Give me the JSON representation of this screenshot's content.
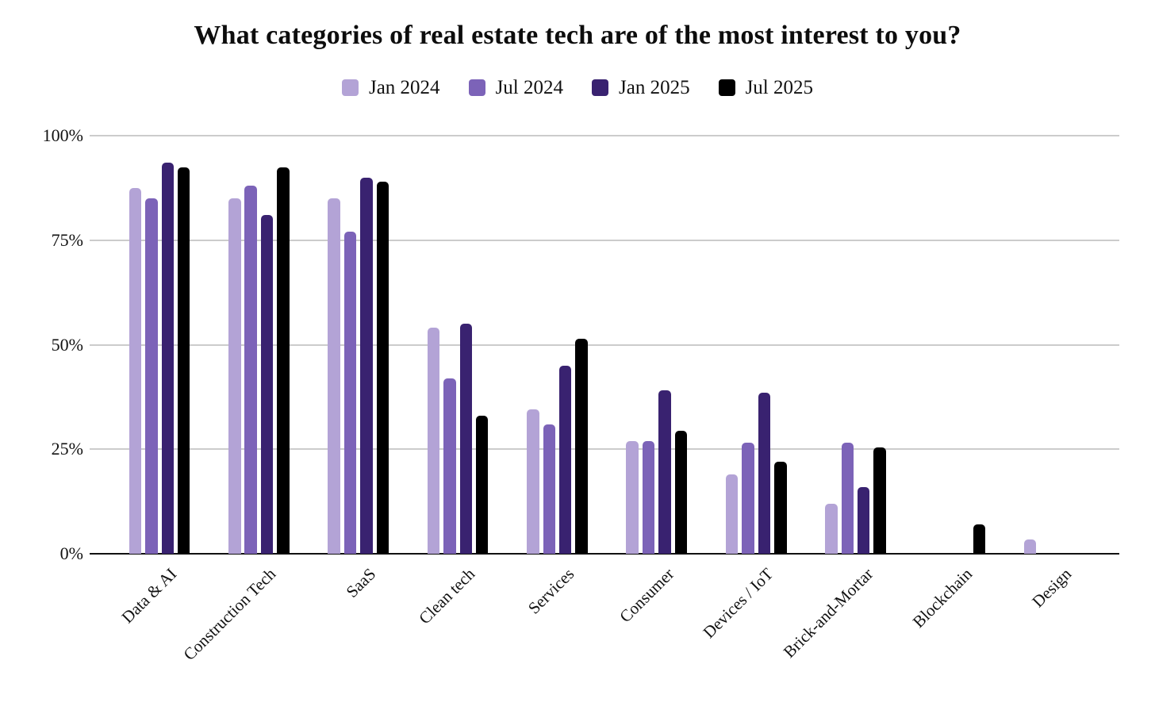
{
  "title": "What categories of real estate tech are of the most interest to you?",
  "chart_data": {
    "type": "bar",
    "title": "What categories of real estate tech are of the most interest to you?",
    "categories": [
      "Data & AI",
      "Construction Tech",
      "SaaS",
      "Clean tech",
      "Services",
      "Consumer",
      "Devices / IoT",
      "Brick-and-Mortar",
      "Blockchain",
      "Design"
    ],
    "series": [
      {
        "name": "Jan 2024",
        "color": "#b3a3d6",
        "values": [
          87.5,
          85,
          85,
          54,
          34.5,
          27,
          19,
          12,
          0,
          3.5
        ]
      },
      {
        "name": "Jul 2024",
        "color": "#7c63b8",
        "values": [
          85,
          88,
          77,
          42,
          31,
          27,
          26.5,
          26.5,
          0,
          0
        ]
      },
      {
        "name": "Jan 2025",
        "color": "#392270",
        "values": [
          93.5,
          81,
          90,
          55,
          45,
          39,
          38.5,
          16,
          0,
          0
        ]
      },
      {
        "name": "Jul 2025",
        "color": "#000000",
        "values": [
          92.5,
          92.5,
          89,
          33,
          51.5,
          29.5,
          22,
          25.5,
          7,
          0
        ]
      }
    ],
    "xlabel": "",
    "ylabel": "",
    "ylim": [
      0,
      100
    ],
    "y_ticks": [
      {
        "value": 100,
        "label": "100%"
      },
      {
        "value": 75,
        "label": "75%"
      },
      {
        "value": 50,
        "label": "50%"
      },
      {
        "value": 25,
        "label": "25%"
      },
      {
        "value": 0,
        "label": "0%"
      }
    ],
    "grid": true,
    "legend_position": "top"
  }
}
